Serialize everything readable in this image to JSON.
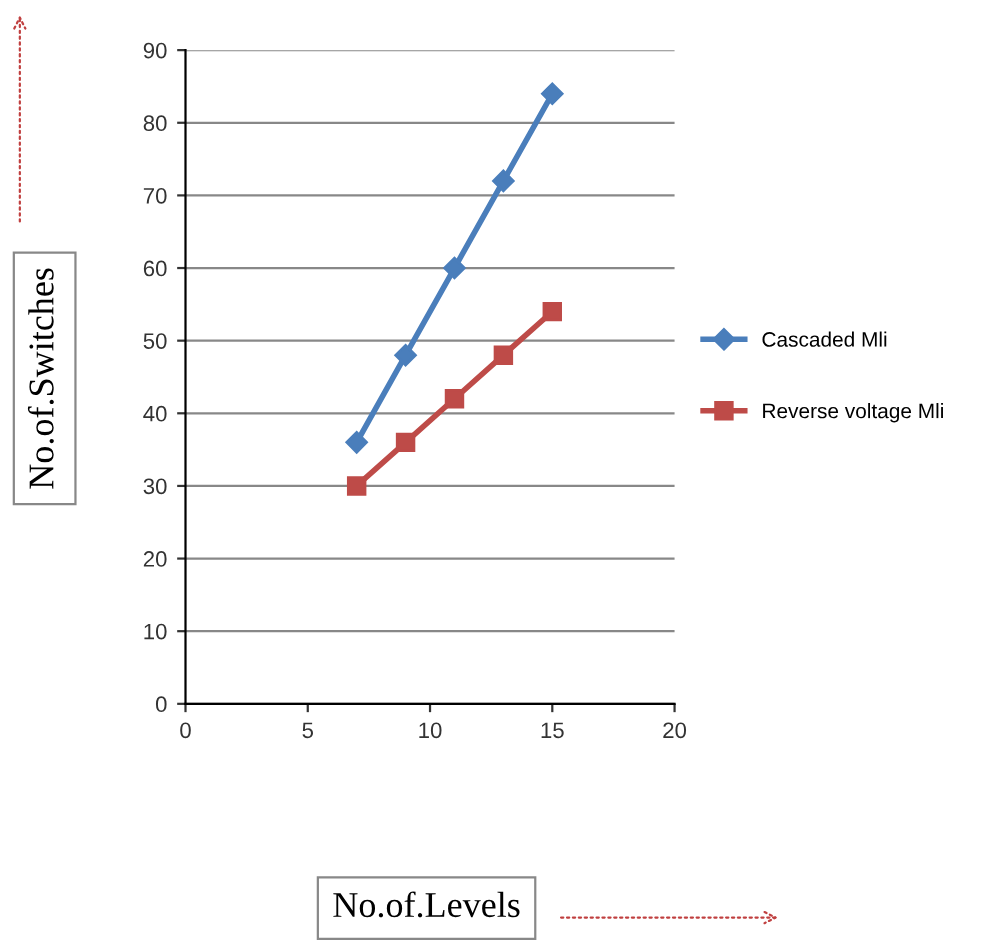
{
  "chart_data": {
    "type": "line",
    "xlabel": "No.of.Levels",
    "ylabel": "No.of.Switches",
    "x": [
      7,
      9,
      11,
      13,
      15
    ],
    "series": [
      {
        "name": "Cascaded Mli",
        "color": "#4a7ebb",
        "marker": "diamond",
        "values": [
          36,
          48,
          60,
          72,
          84
        ]
      },
      {
        "name": "Reverse voltage Mli",
        "color": "#be4b48",
        "marker": "square",
        "values": [
          30,
          36,
          42,
          48,
          54
        ]
      }
    ],
    "xlim": [
      0,
      20
    ],
    "xticks": [
      0,
      5,
      10,
      15,
      20
    ],
    "ylim": [
      0,
      90
    ],
    "yticks": [
      0,
      10,
      20,
      30,
      40,
      50,
      60,
      70,
      80,
      90
    ],
    "grid": "y",
    "legend": "right"
  }
}
